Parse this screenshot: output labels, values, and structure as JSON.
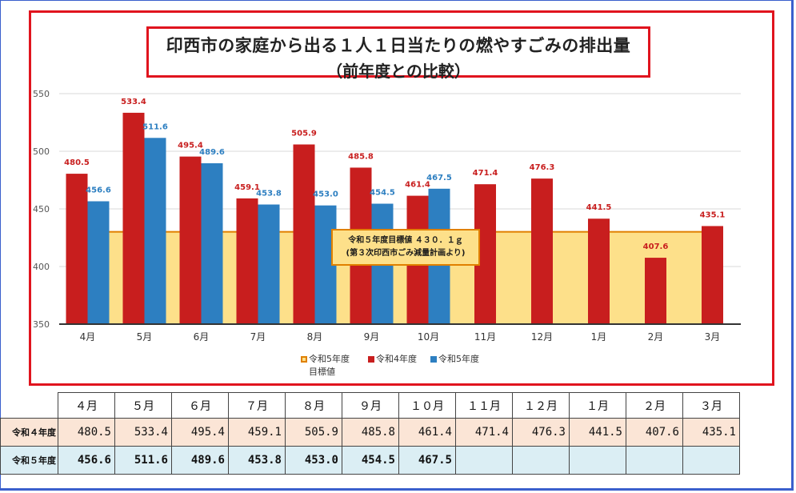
{
  "chart_data": {
    "type": "bar",
    "title": "印西市の家庭から出る１人１日当たりの燃やすごみの排出量",
    "subtitle": "（前年度との比較）",
    "categories": [
      "4月",
      "5月",
      "6月",
      "7月",
      "8月",
      "9月",
      "10月",
      "11月",
      "12月",
      "1月",
      "2月",
      "3月"
    ],
    "series": [
      {
        "name": "令和4年度",
        "color": "#c81e1e",
        "values": [
          480.5,
          533.4,
          495.4,
          459.1,
          505.9,
          485.8,
          461.4,
          471.4,
          476.3,
          441.5,
          407.6,
          435.1
        ],
        "labels": [
          "480.5",
          "533.4",
          "495.4",
          "459.1",
          "505.9",
          "485.8",
          "461.4",
          "471.4",
          "476.3",
          "441.5",
          "407.6",
          "435.1"
        ]
      },
      {
        "name": "令和5年度",
        "color": "#2d7fc1",
        "values": [
          456.6,
          511.6,
          489.6,
          453.8,
          453.0,
          454.5,
          467.5,
          null,
          null,
          null,
          null,
          null
        ],
        "labels": [
          "456.6",
          "511.6",
          "489.6",
          "453.8",
          "453.0",
          "454.5",
          "467.5",
          "",
          "",
          "",
          "",
          ""
        ]
      }
    ],
    "target": {
      "name": "令和5年度目標値",
      "value": 430.1,
      "fill": "#fde08a",
      "stroke": "#e08000",
      "note_line1": "令和５年度目標値 ４３０．１ｇ",
      "note_line2": "(第３次印西市ごみ減量計画より)"
    },
    "ylim": [
      350,
      550
    ],
    "yticks": [
      350,
      400,
      450,
      500,
      550
    ],
    "grid": true,
    "legend": {
      "position": "bottom",
      "items": [
        "令和5年度",
        "目標値",
        "令和4年度",
        "令和5年度"
      ]
    }
  },
  "table": {
    "headers": [
      "４月",
      "５月",
      "６月",
      "７月",
      "８月",
      "９月",
      "１０月",
      "１１月",
      "１２月",
      "１月",
      "２月",
      "３月"
    ],
    "row4_label": "令和４年度",
    "row4": [
      "480.5",
      "533.4",
      "495.4",
      "459.1",
      "505.9",
      "485.8",
      "461.4",
      "471.4",
      "476.3",
      "441.5",
      "407.6",
      "435.1"
    ],
    "row5_label": "令和５年度",
    "row5": [
      "456.6",
      "511.6",
      "489.6",
      "453.8",
      "453.0",
      "454.5",
      "467.5",
      "",
      "",
      "",
      "",
      ""
    ]
  }
}
